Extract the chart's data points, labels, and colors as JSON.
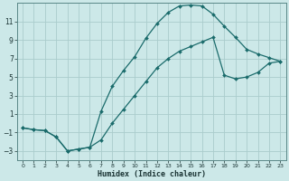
{
  "xlabel": "Humidex (Indice chaleur)",
  "bg_color": "#cce8e8",
  "grid_color": "#aacccc",
  "line_color": "#1a6b6b",
  "xlim": [
    -0.5,
    23.5
  ],
  "ylim": [
    -4,
    13
  ],
  "xticks": [
    0,
    1,
    2,
    3,
    4,
    5,
    6,
    7,
    8,
    9,
    10,
    11,
    12,
    13,
    14,
    15,
    16,
    17,
    18,
    19,
    20,
    21,
    22,
    23
  ],
  "yticks": [
    -3,
    -1,
    1,
    3,
    5,
    7,
    9,
    11
  ],
  "line1_x": [
    0,
    1,
    2,
    3,
    4,
    5,
    6,
    7,
    8,
    9,
    10,
    11,
    12,
    13,
    14,
    15,
    16,
    17,
    18,
    19,
    20,
    21,
    22,
    23
  ],
  "line1_y": [
    -0.5,
    -0.7,
    -0.8,
    -1.5,
    -3.0,
    -2.8,
    -2.6,
    1.3,
    4.0,
    5.7,
    7.2,
    9.2,
    10.8,
    12.0,
    12.7,
    12.8,
    12.7,
    11.8,
    10.5,
    9.3,
    8.0,
    7.5,
    7.1,
    6.7
  ],
  "line2_x": [
    0,
    1,
    2,
    3,
    4,
    5,
    6,
    7,
    8,
    9,
    10,
    11,
    12,
    13,
    14,
    15,
    16,
    17,
    18,
    19,
    20,
    21,
    22,
    23
  ],
  "line2_y": [
    -0.5,
    -0.7,
    -0.8,
    -1.5,
    -3.0,
    -2.8,
    -2.6,
    -1.8,
    0.0,
    1.5,
    3.0,
    4.5,
    6.0,
    7.0,
    7.8,
    8.3,
    8.8,
    9.3,
    5.2,
    4.8,
    5.0,
    5.5,
    6.5,
    6.7
  ]
}
